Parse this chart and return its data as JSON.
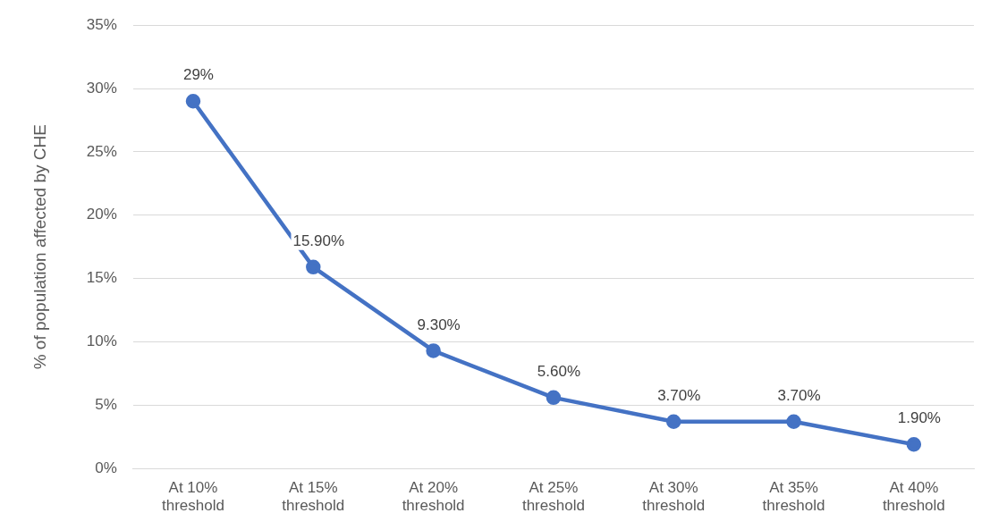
{
  "chart_data": {
    "type": "line",
    "ylabel": "% of population affected by CHE",
    "categories": [
      "At 10% threshold",
      "At 15% threshold",
      "At 20% threshold",
      "At 25% threshold",
      "At 30% threshold",
      "At 35% threshold",
      "At 40% threshold"
    ],
    "series": [
      {
        "color": "#4472c4",
        "values": [
          29,
          15.9,
          9.3,
          5.6,
          3.7,
          3.7,
          1.9
        ],
        "value_labels": [
          "29%",
          "15.90%",
          "9.30%",
          "5.60%",
          "3.70%",
          "3.70%",
          "1.90%"
        ]
      }
    ],
    "ylim": [
      0,
      35
    ],
    "yticks": [
      {
        "value": 0,
        "label": "0%"
      },
      {
        "value": 5,
        "label": "5%"
      },
      {
        "value": 10,
        "label": "10%"
      },
      {
        "value": 15,
        "label": "15%"
      },
      {
        "value": 20,
        "label": "20%"
      },
      {
        "value": 25,
        "label": "25%"
      },
      {
        "value": 30,
        "label": "30%"
      },
      {
        "value": 35,
        "label": "35%"
      }
    ],
    "grid": "y",
    "legend": false,
    "marker": "circle",
    "line_style": "solid"
  }
}
